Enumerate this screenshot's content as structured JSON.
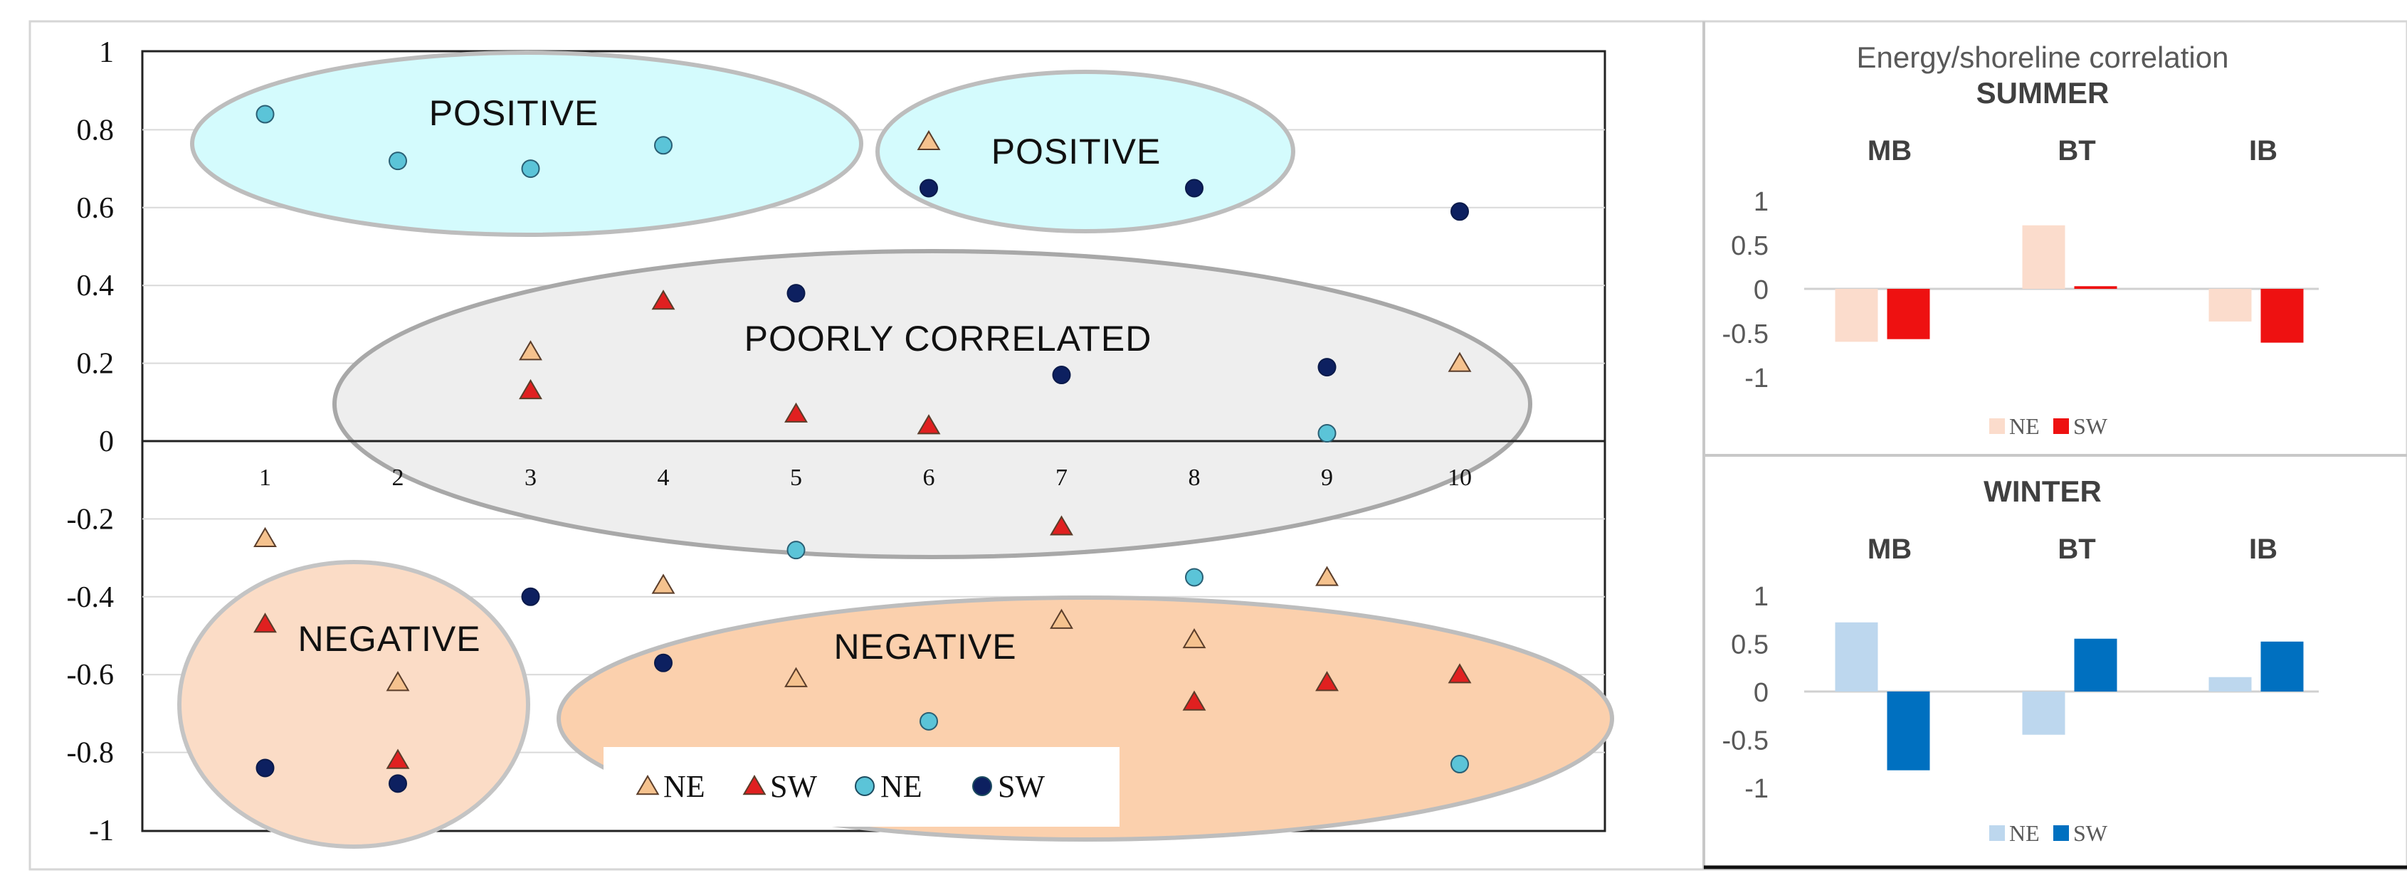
{
  "chart_data": [
    {
      "id": "main-scatter",
      "type": "scatter",
      "title": "",
      "xlabel": "",
      "ylabel": "",
      "x_ticks": [
        "1",
        "2",
        "3",
        "4",
        "5",
        "6",
        "7",
        "8",
        "9",
        "10"
      ],
      "y_ticks": [
        "1",
        "0.8",
        "0.6",
        "0.4",
        "0.2",
        "0",
        "-0.2",
        "-0.4",
        "-0.6",
        "-0.8",
        "-1"
      ],
      "xlim": [
        0,
        11
      ],
      "ylim": [
        -1,
        1
      ],
      "grid": true,
      "regions": [
        {
          "label": "POSITIVE",
          "color": "#d4fbfd"
        },
        {
          "label": "POSITIVE",
          "color": "#d4fbfd"
        },
        {
          "label": "POORLY CORRELATED",
          "color": "#eeeeee"
        },
        {
          "label": "NEGATIVE",
          "color": "#fbdcc6"
        },
        {
          "label": "NEGATIVE",
          "color": "#fbd0ad"
        }
      ],
      "series": [
        {
          "name": "NE",
          "marker": "triangle",
          "color": "#f5c28e",
          "points": [
            [
              1,
              -0.25
            ],
            [
              2,
              -0.62
            ],
            [
              3,
              0.23
            ],
            [
              4,
              -0.37
            ],
            [
              5,
              -0.61
            ],
            [
              6,
              0.77
            ],
            [
              7,
              -0.46
            ],
            [
              8,
              -0.51
            ],
            [
              9,
              -0.35
            ],
            [
              10,
              0.2
            ]
          ]
        },
        {
          "name": "SW",
          "marker": "triangle",
          "color": "#e02020",
          "points": [
            [
              1,
              -0.47
            ],
            [
              2,
              -0.82
            ],
            [
              3,
              0.13
            ],
            [
              4,
              0.36
            ],
            [
              5,
              0.07
            ],
            [
              6,
              0.04
            ],
            [
              7,
              -0.22
            ],
            [
              8,
              -0.67
            ],
            [
              9,
              -0.62
            ],
            [
              10,
              -0.6
            ]
          ]
        },
        {
          "name": "NE",
          "marker": "circle",
          "color": "#5bc4d8",
          "points": [
            [
              1,
              0.84
            ],
            [
              2,
              0.72
            ],
            [
              3,
              0.7
            ],
            [
              4,
              0.76
            ],
            [
              5,
              -0.28
            ],
            [
              6,
              -0.72
            ],
            [
              8,
              -0.35
            ],
            [
              9,
              0.02
            ],
            [
              10,
              -0.83
            ]
          ]
        },
        {
          "name": "SW",
          "marker": "circle",
          "color": "#0d2060",
          "points": [
            [
              1,
              -0.84
            ],
            [
              2,
              -0.88
            ],
            [
              3,
              -0.4
            ],
            [
              4,
              -0.57
            ],
            [
              5,
              0.38
            ],
            [
              6,
              0.65
            ],
            [
              7,
              0.17
            ],
            [
              8,
              0.65
            ],
            [
              9,
              0.19
            ],
            [
              10,
              0.59
            ]
          ]
        }
      ],
      "legend": [
        {
          "label": "NE",
          "marker": "triangle",
          "color": "#f5c28e"
        },
        {
          "label": "SW",
          "marker": "triangle",
          "color": "#e02020"
        },
        {
          "label": "NE",
          "marker": "circle",
          "color": "#5bc4d8"
        },
        {
          "label": "SW",
          "marker": "circle",
          "color": "#0d2060"
        }
      ],
      "legend_position": "bottom-center"
    },
    {
      "id": "summer-bars",
      "type": "bar",
      "title": "Energy/shoreline correlation",
      "subtitle": "SUMMER",
      "categories": [
        "MB",
        "BT",
        "IB"
      ],
      "series": [
        {
          "name": "NE",
          "color": "#fbdccc",
          "values": [
            -0.6,
            0.72,
            -0.37
          ]
        },
        {
          "name": "SW",
          "color": "#ee1111",
          "values": [
            -0.57,
            0.03,
            -0.61
          ]
        }
      ],
      "y_ticks": [
        "1",
        "0.5",
        "0",
        "-0.5",
        "-1"
      ],
      "ylim": [
        -1,
        1
      ],
      "legend_position": "bottom-center"
    },
    {
      "id": "winter-bars",
      "type": "bar",
      "title": "",
      "subtitle": "WINTER",
      "categories": [
        "MB",
        "BT",
        "IB"
      ],
      "series": [
        {
          "name": "NE",
          "color": "#bdd7ee",
          "values": [
            0.72,
            -0.45,
            0.15
          ]
        },
        {
          "name": "SW",
          "color": "#0070c0",
          "values": [
            -0.82,
            0.55,
            0.52
          ]
        }
      ],
      "y_ticks": [
        "1",
        "0.5",
        "0",
        "-0.5",
        "-1"
      ],
      "ylim": [
        -1,
        1
      ],
      "legend_position": "bottom-center"
    }
  ]
}
